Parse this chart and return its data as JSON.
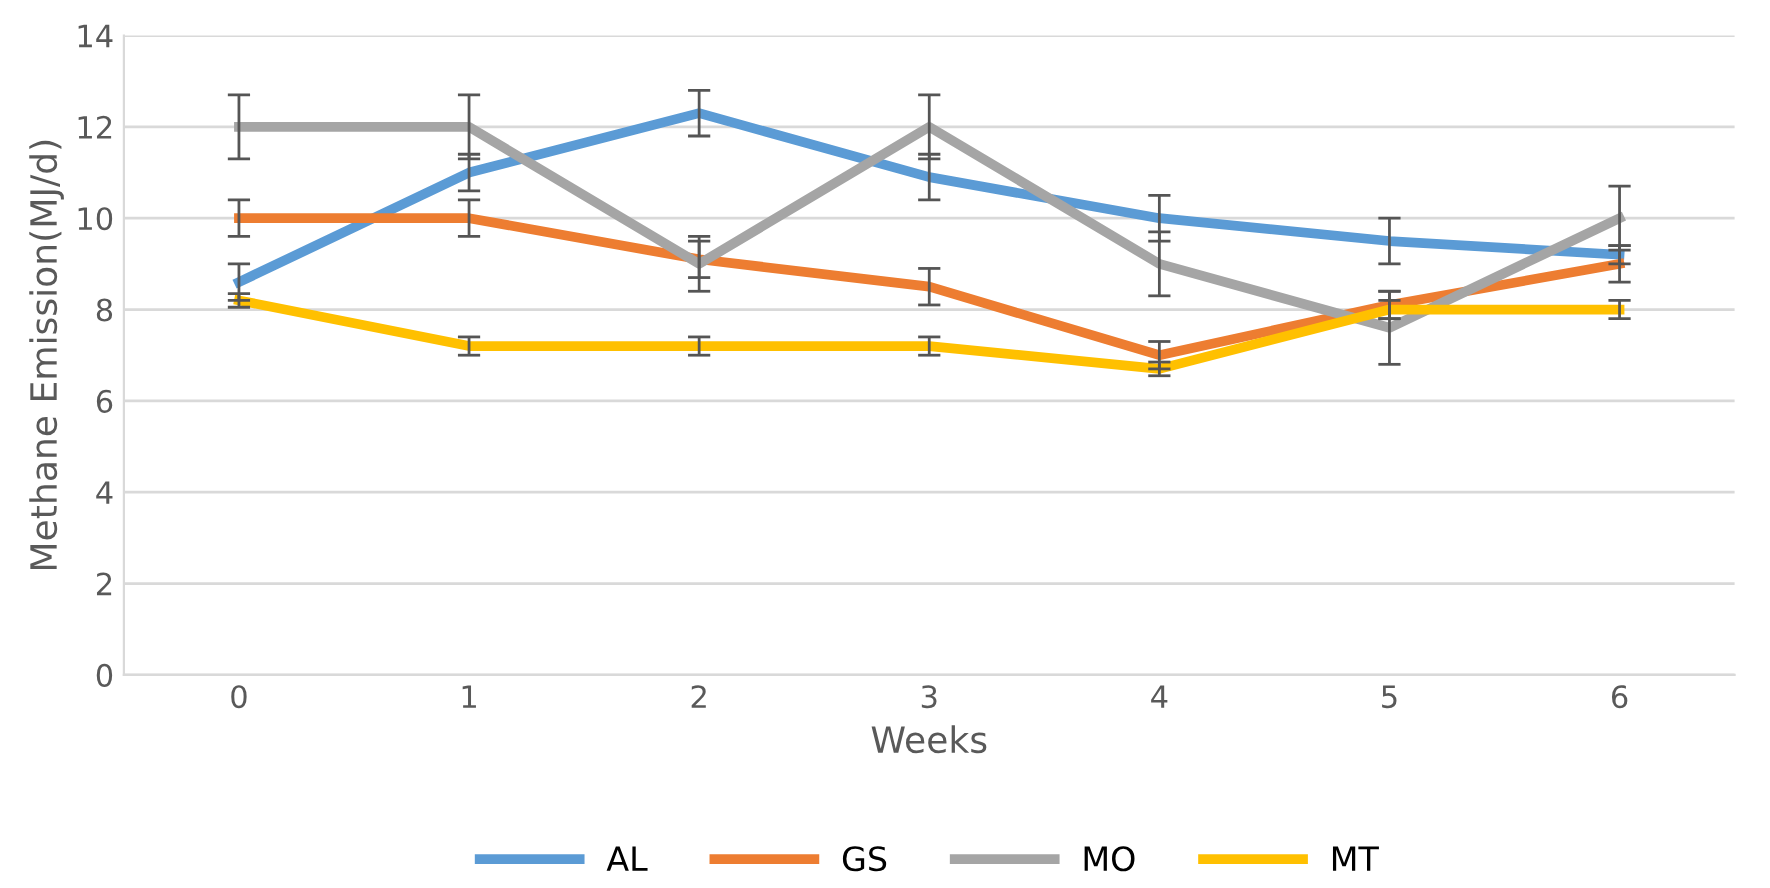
{
  "chart_data": {
    "type": "line",
    "xlabel": "Weeks",
    "ylabel": "Methane Emission(MJ/d)",
    "x": [
      0,
      1,
      2,
      3,
      4,
      5,
      6
    ],
    "xlim": [
      -0.5,
      6.5
    ],
    "xticks": [
      0,
      1,
      2,
      3,
      4,
      5,
      6
    ],
    "ylim": [
      0,
      14
    ],
    "yticks": [
      0,
      2,
      4,
      6,
      8,
      10,
      12,
      14
    ],
    "grid": "y",
    "legend": "bottom",
    "marker": "none",
    "line_style": "solid",
    "series": [
      {
        "name": "AL",
        "color": "#5b9bd5",
        "values": [
          8.6,
          11.0,
          12.3,
          10.9,
          10.0,
          9.5,
          9.2
        ],
        "errors": [
          0.4,
          0.4,
          0.5,
          0.5,
          0.5,
          0.5,
          0.2
        ]
      },
      {
        "name": "GS",
        "color": "#ed7d31",
        "values": [
          10.0,
          10.0,
          9.1,
          8.5,
          7.0,
          8.1,
          9.0
        ],
        "errors": [
          0.4,
          0.4,
          0.4,
          0.4,
          0.3,
          0.3,
          0.4
        ]
      },
      {
        "name": "MO",
        "color": "#a5a5a5",
        "values": [
          12.0,
          12.0,
          9.0,
          12.0,
          9.0,
          7.6,
          10.0
        ],
        "errors": [
          0.7,
          0.7,
          0.6,
          0.7,
          0.7,
          0.8,
          0.7
        ]
      },
      {
        "name": "MT",
        "color": "#ffc000",
        "values": [
          8.2,
          7.2,
          7.2,
          7.2,
          6.7,
          8.0,
          8.0
        ],
        "errors": [
          0.15,
          0.2,
          0.2,
          0.2,
          0.15,
          0.2,
          0.2
        ]
      }
    ]
  }
}
